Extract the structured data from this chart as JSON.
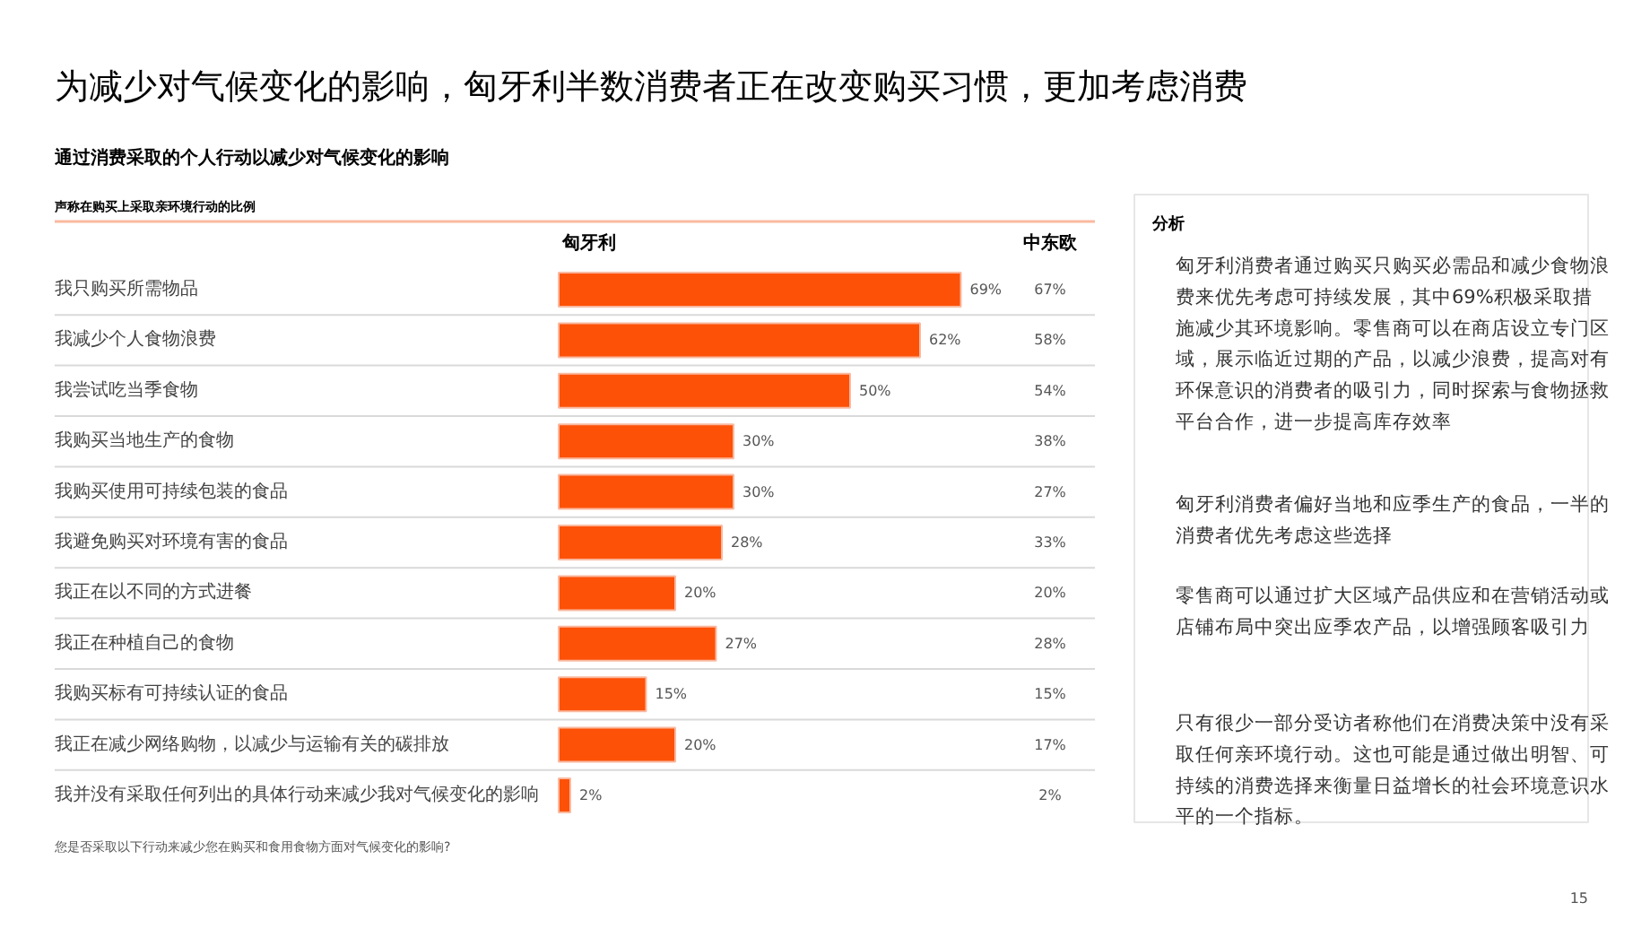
{
  "chart_data": [
    {
      "type": "bar",
      "orientation": "horizontal",
      "title": "为减少对气候变化的影响，匈牙利半数消费者正在改变购买习惯，更加考虑消费",
      "subtitle": "通过消费采取的个人行动以减少对气候变化的影响",
      "annotations": [
        "声称在购买上采取亲环境行动的比例",
        "您是否采取以下行动来减少您在购买和食用食物方面对气候变化的影响?",
        "15"
      ],
      "categories": [
        "我只购买所需物品",
        "我减少个人食物浪费",
        "我尝试吃当季食物",
        "我购买当地生产的食物",
        "我购买使用可持续包装的食品",
        "我避免购买对环境有害的食品",
        "我正在以不同的方式进餐",
        "我正在种植自己的食物",
        "我购买标有可持续认证的食品",
        "我正在减少网络购物，以减少与运输有关的碳排放",
        "我并没有采取任何列出的具体行动来减少我对气候变化的影响"
      ],
      "series": [
        {
          "name": "匈牙利",
          "color": "#fd5108",
          "values": [
            69,
            62,
            50,
            30,
            30,
            28,
            20,
            27,
            15,
            20,
            2
          ],
          "value_labels": [
            "69%",
            "62%",
            "50%",
            "30%",
            "30%",
            "28%",
            "20%",
            "27%",
            "15%",
            "20%",
            "2%"
          ]
        }
      ]
    },
    {
      "type": "other",
      "title": "中东欧",
      "value_labels": [
        "67%",
        "58%",
        "54%",
        "38%",
        "27%",
        "33%",
        "20%",
        "28%",
        "15%",
        "17%",
        "2%"
      ]
    },
    {
      "type": "other",
      "title": "分析",
      "annotations": [
        "匈牙利消费者通过购买只购买必需品和减少食物浪费来优先考虑可持续发展，其中69%积极采取措施减少其环境影响。零售商可以在商店设立专门区域，展示临近过期的产品，以减少浪费，提高对有环保意识的消费者的吸引力，同时探索与食物拯救平台合作，进一步提高库存效率",
        "匈牙利消费者偏好当地和应季生产的食品，一半的消费者优先考虑这些选择",
        "零售商可以通过扩大区域产品供应和在营销活动或店铺布局中突出应季农产品，以增强顾客吸引力",
        "只有很少一部分受访者称他们在消费决策中没有采取任何亲环境行动。这也可能是通过做出明智、可持续的消费选择来衡量日益增长的社会环境意识水平的一个指标。"
      ]
    }
  ]
}
